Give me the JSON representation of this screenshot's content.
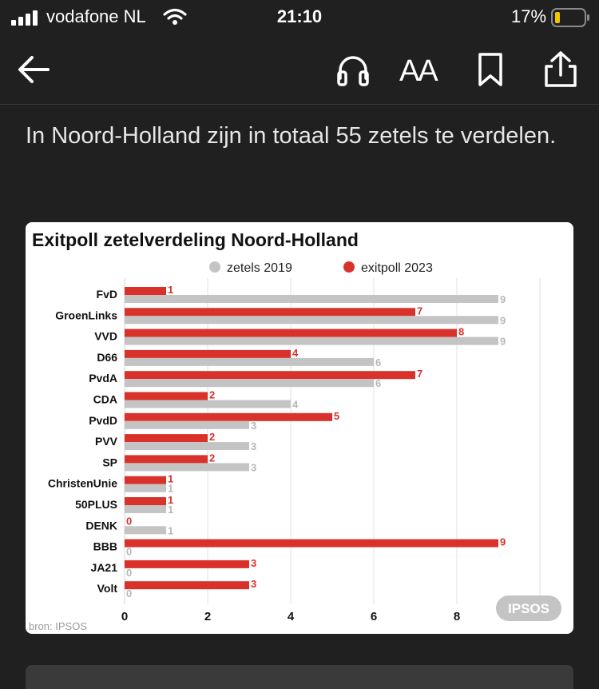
{
  "status_bar": {
    "carrier": "vodafone NL",
    "time": "21:10",
    "battery": "17%"
  },
  "toolbar": {
    "icons": [
      "back-arrow-icon",
      "headphones-icon",
      "text-size-icon",
      "bookmark-icon",
      "share-icon"
    ],
    "text_size_label": "AA"
  },
  "article": {
    "paragraph": "In Noord-Holland zijn in totaal 55 zetels te verdelen."
  },
  "chart_data": {
    "type": "bar",
    "title": "Exitpoll zetelverdeling Noord-Holland",
    "categories": [
      "FvD",
      "GroenLinks",
      "VVD",
      "D66",
      "PvdA",
      "CDA",
      "PvdD",
      "PVV",
      "SP",
      "ChristenUnie",
      "50PLUS",
      "DENK",
      "BBB",
      "JA21",
      "Volt"
    ],
    "series": [
      {
        "name": "zetels 2019",
        "color": "#c4c4c4",
        "values": [
          9,
          9,
          9,
          6,
          6,
          4,
          3,
          3,
          3,
          1,
          1,
          1,
          0,
          0,
          0
        ]
      },
      {
        "name": "exitpoll 2023",
        "color": "#d8322a",
        "values": [
          1,
          7,
          8,
          4,
          7,
          2,
          5,
          2,
          2,
          1,
          1,
          0,
          9,
          3,
          3
        ]
      }
    ],
    "xticks": [
      0,
      2,
      4,
      6,
      8
    ],
    "xlim": [
      0,
      10
    ],
    "orientation": "horizontal",
    "grid": true,
    "legend_position": "top",
    "badge": "IPSOS",
    "source": "bron: IPSOS"
  }
}
